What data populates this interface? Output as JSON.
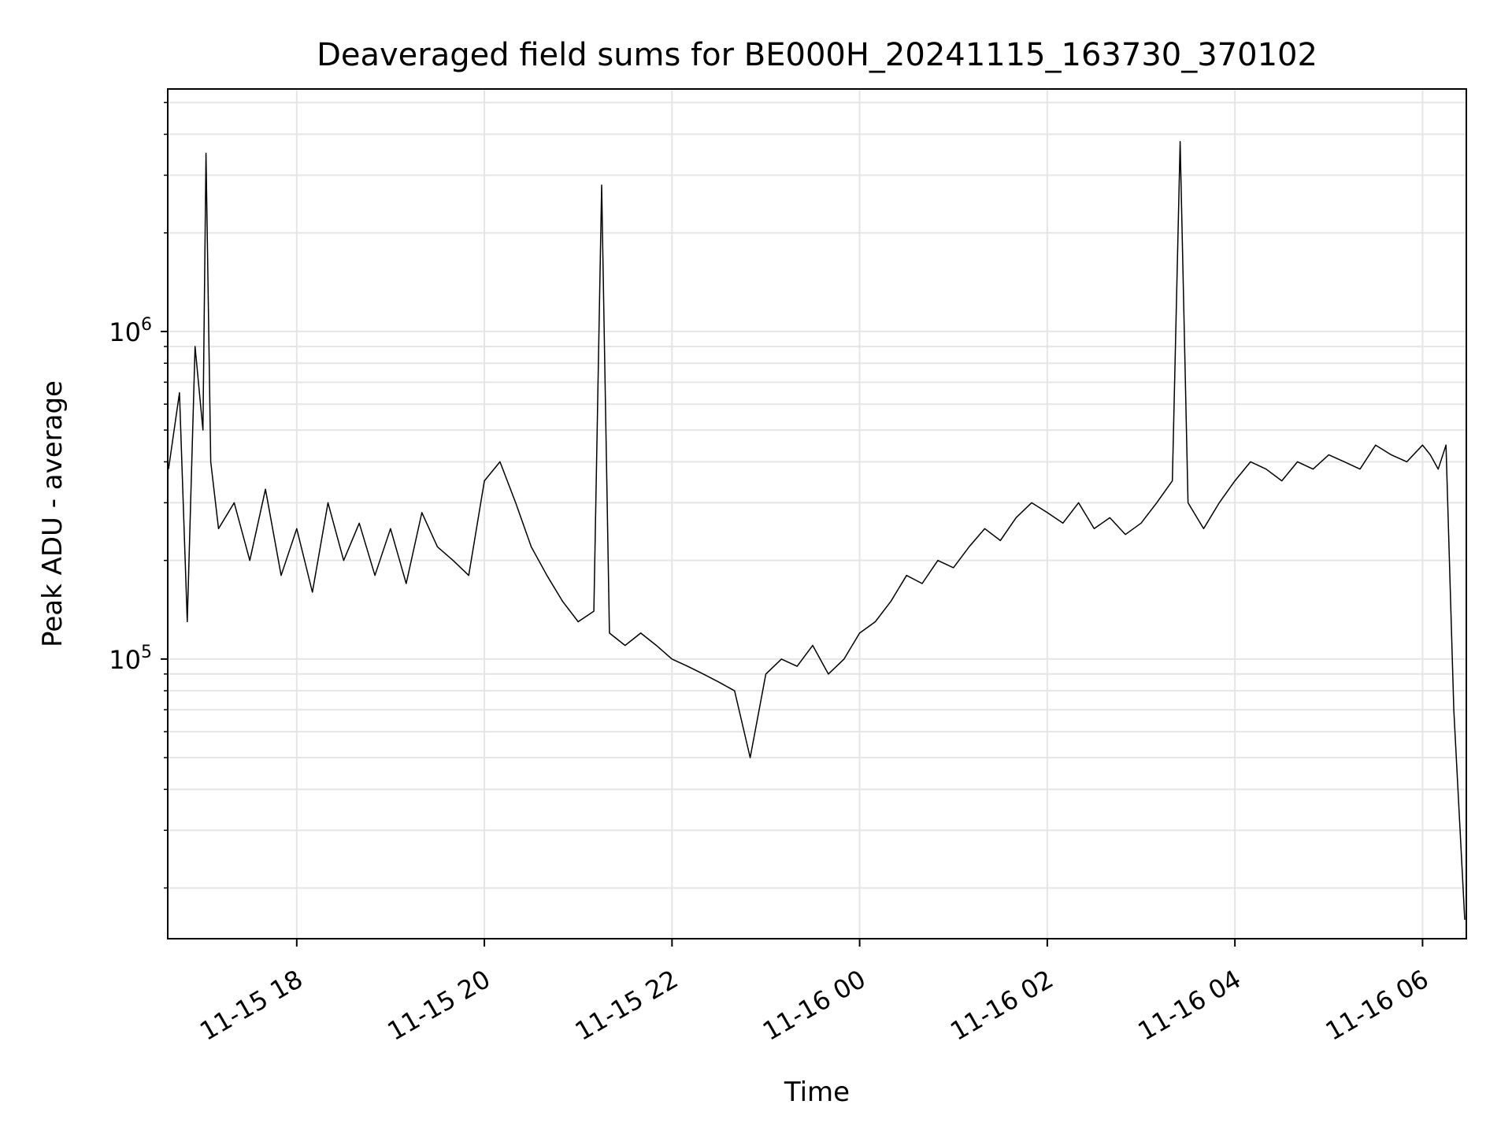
{
  "chart_data": {
    "type": "line",
    "title": "Deaveraged field sums for BE000H_20241115_163730_370102",
    "xlabel": "Time",
    "ylabel": "Peak ADU - average",
    "yscale": "log",
    "ylim": [
      14000,
      5500000
    ],
    "xlim": [
      "2024-11-15 16:37:30",
      "2024-11-16 06:28:00"
    ],
    "grid": true,
    "line_color": "#000000",
    "grid_color": "#e5e5e5",
    "x_ticks": [
      {
        "time": "2024-11-15 18:00",
        "label": "11-15 18"
      },
      {
        "time": "2024-11-15 20:00",
        "label": "11-15 20"
      },
      {
        "time": "2024-11-15 22:00",
        "label": "11-15 22"
      },
      {
        "time": "2024-11-16 00:00",
        "label": "11-16 00"
      },
      {
        "time": "2024-11-16 02:00",
        "label": "11-16 02"
      },
      {
        "time": "2024-11-16 04:00",
        "label": "11-16 04"
      },
      {
        "time": "2024-11-16 06:00",
        "label": "11-16 06"
      }
    ],
    "y_ticks": [
      {
        "value": 100000,
        "base": "10",
        "exp": "5"
      },
      {
        "value": 1000000,
        "base": "10",
        "exp": "6"
      }
    ],
    "series": [
      {
        "points": [
          [
            "2024-11-15 16:38",
            380000
          ],
          [
            "2024-11-15 16:45",
            650000
          ],
          [
            "2024-11-15 16:50",
            130000
          ],
          [
            "2024-11-15 16:55",
            900000
          ],
          [
            "2024-11-15 17:00",
            500000
          ],
          [
            "2024-11-15 17:02",
            3500000
          ],
          [
            "2024-11-15 17:05",
            400000
          ],
          [
            "2024-11-15 17:10",
            250000
          ],
          [
            "2024-11-15 17:20",
            300000
          ],
          [
            "2024-11-15 17:30",
            200000
          ],
          [
            "2024-11-15 17:40",
            330000
          ],
          [
            "2024-11-15 17:50",
            180000
          ],
          [
            "2024-11-15 18:00",
            250000
          ],
          [
            "2024-11-15 18:10",
            160000
          ],
          [
            "2024-11-15 18:20",
            300000
          ],
          [
            "2024-11-15 18:30",
            200000
          ],
          [
            "2024-11-15 18:40",
            260000
          ],
          [
            "2024-11-15 18:50",
            180000
          ],
          [
            "2024-11-15 19:00",
            250000
          ],
          [
            "2024-11-15 19:10",
            170000
          ],
          [
            "2024-11-15 19:20",
            280000
          ],
          [
            "2024-11-15 19:30",
            220000
          ],
          [
            "2024-11-15 19:40",
            200000
          ],
          [
            "2024-11-15 19:50",
            180000
          ],
          [
            "2024-11-15 20:00",
            350000
          ],
          [
            "2024-11-15 20:10",
            400000
          ],
          [
            "2024-11-15 20:20",
            300000
          ],
          [
            "2024-11-15 20:30",
            220000
          ],
          [
            "2024-11-15 20:40",
            180000
          ],
          [
            "2024-11-15 20:50",
            150000
          ],
          [
            "2024-11-15 21:00",
            130000
          ],
          [
            "2024-11-15 21:10",
            140000
          ],
          [
            "2024-11-15 21:15",
            2800000
          ],
          [
            "2024-11-15 21:20",
            120000
          ],
          [
            "2024-11-15 21:30",
            110000
          ],
          [
            "2024-11-15 21:40",
            120000
          ],
          [
            "2024-11-15 21:50",
            110000
          ],
          [
            "2024-11-15 22:00",
            100000
          ],
          [
            "2024-11-15 22:10",
            95000
          ],
          [
            "2024-11-15 22:20",
            90000
          ],
          [
            "2024-11-15 22:30",
            85000
          ],
          [
            "2024-11-15 22:40",
            80000
          ],
          [
            "2024-11-15 22:50",
            50000
          ],
          [
            "2024-11-15 23:00",
            90000
          ],
          [
            "2024-11-15 23:10",
            100000
          ],
          [
            "2024-11-15 23:20",
            95000
          ],
          [
            "2024-11-15 23:30",
            110000
          ],
          [
            "2024-11-15 23:40",
            90000
          ],
          [
            "2024-11-15 23:50",
            100000
          ],
          [
            "2024-11-16 00:00",
            120000
          ],
          [
            "2024-11-16 00:10",
            130000
          ],
          [
            "2024-11-16 00:20",
            150000
          ],
          [
            "2024-11-16 00:30",
            180000
          ],
          [
            "2024-11-16 00:40",
            170000
          ],
          [
            "2024-11-16 00:50",
            200000
          ],
          [
            "2024-11-16 01:00",
            190000
          ],
          [
            "2024-11-16 01:10",
            220000
          ],
          [
            "2024-11-16 01:20",
            250000
          ],
          [
            "2024-11-16 01:30",
            230000
          ],
          [
            "2024-11-16 01:40",
            270000
          ],
          [
            "2024-11-16 01:50",
            300000
          ],
          [
            "2024-11-16 02:00",
            280000
          ],
          [
            "2024-11-16 02:10",
            260000
          ],
          [
            "2024-11-16 02:20",
            300000
          ],
          [
            "2024-11-16 02:30",
            250000
          ],
          [
            "2024-11-16 02:40",
            270000
          ],
          [
            "2024-11-16 02:50",
            240000
          ],
          [
            "2024-11-16 03:00",
            260000
          ],
          [
            "2024-11-16 03:10",
            300000
          ],
          [
            "2024-11-16 03:20",
            350000
          ],
          [
            "2024-11-16 03:25",
            3800000
          ],
          [
            "2024-11-16 03:30",
            300000
          ],
          [
            "2024-11-16 03:40",
            250000
          ],
          [
            "2024-11-16 03:50",
            300000
          ],
          [
            "2024-11-16 04:00",
            350000
          ],
          [
            "2024-11-16 04:10",
            400000
          ],
          [
            "2024-11-16 04:20",
            380000
          ],
          [
            "2024-11-16 04:30",
            350000
          ],
          [
            "2024-11-16 04:40",
            400000
          ],
          [
            "2024-11-16 04:50",
            380000
          ],
          [
            "2024-11-16 05:00",
            420000
          ],
          [
            "2024-11-16 05:10",
            400000
          ],
          [
            "2024-11-16 05:20",
            380000
          ],
          [
            "2024-11-16 05:30",
            450000
          ],
          [
            "2024-11-16 05:40",
            420000
          ],
          [
            "2024-11-16 05:50",
            400000
          ],
          [
            "2024-11-16 06:00",
            450000
          ],
          [
            "2024-11-16 06:05",
            420000
          ],
          [
            "2024-11-16 06:10",
            380000
          ],
          [
            "2024-11-16 06:15",
            450000
          ],
          [
            "2024-11-16 06:20",
            70000
          ],
          [
            "2024-11-16 06:27",
            16000
          ]
        ]
      }
    ]
  }
}
